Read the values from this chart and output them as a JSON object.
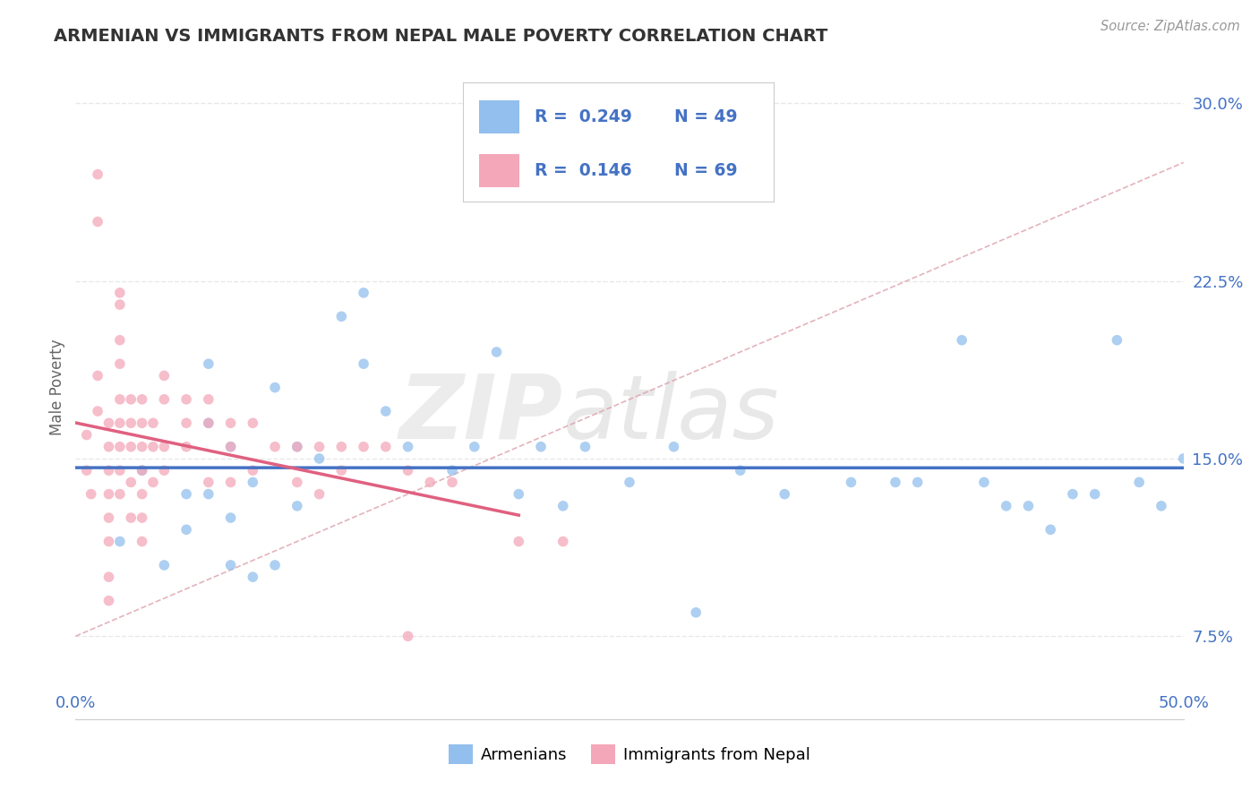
{
  "title": "ARMENIAN VS IMMIGRANTS FROM NEPAL MALE POVERTY CORRELATION CHART",
  "source": "Source: ZipAtlas.com",
  "ylabel": "Male Poverty",
  "xlim": [
    0.0,
    0.5
  ],
  "ylim": [
    0.04,
    0.32
  ],
  "legend_armenians": "Armenians",
  "legend_nepal": "Immigrants from Nepal",
  "R_armenians": "0.249",
  "N_armenians": "49",
  "R_nepal": "0.146",
  "N_nepal": "69",
  "color_armenians": "#92BFED",
  "color_nepal": "#F4A7B9",
  "color_trend_armenians": "#4472C4",
  "color_trend_nepal": "#E06080",
  "armenians_x": [
    0.02,
    0.03,
    0.04,
    0.05,
    0.05,
    0.06,
    0.06,
    0.06,
    0.07,
    0.07,
    0.07,
    0.08,
    0.08,
    0.09,
    0.09,
    0.1,
    0.1,
    0.11,
    0.12,
    0.13,
    0.13,
    0.14,
    0.15,
    0.17,
    0.18,
    0.19,
    0.2,
    0.21,
    0.22,
    0.23,
    0.25,
    0.27,
    0.28,
    0.3,
    0.32,
    0.35,
    0.37,
    0.38,
    0.4,
    0.41,
    0.42,
    0.43,
    0.44,
    0.45,
    0.46,
    0.47,
    0.48,
    0.49,
    0.5
  ],
  "armenians_y": [
    0.115,
    0.145,
    0.105,
    0.135,
    0.12,
    0.135,
    0.165,
    0.19,
    0.105,
    0.125,
    0.155,
    0.1,
    0.14,
    0.105,
    0.18,
    0.13,
    0.155,
    0.15,
    0.21,
    0.19,
    0.22,
    0.17,
    0.155,
    0.145,
    0.155,
    0.195,
    0.135,
    0.155,
    0.13,
    0.155,
    0.14,
    0.155,
    0.085,
    0.145,
    0.135,
    0.14,
    0.14,
    0.14,
    0.2,
    0.14,
    0.13,
    0.13,
    0.12,
    0.135,
    0.135,
    0.2,
    0.14,
    0.13,
    0.15
  ],
  "nepal_x": [
    0.005,
    0.005,
    0.007,
    0.01,
    0.01,
    0.01,
    0.01,
    0.015,
    0.015,
    0.015,
    0.015,
    0.015,
    0.015,
    0.015,
    0.015,
    0.02,
    0.02,
    0.02,
    0.02,
    0.02,
    0.02,
    0.02,
    0.02,
    0.02,
    0.025,
    0.025,
    0.025,
    0.025,
    0.025,
    0.03,
    0.03,
    0.03,
    0.03,
    0.03,
    0.03,
    0.03,
    0.035,
    0.035,
    0.035,
    0.04,
    0.04,
    0.04,
    0.04,
    0.05,
    0.05,
    0.05,
    0.06,
    0.06,
    0.06,
    0.07,
    0.07,
    0.07,
    0.08,
    0.08,
    0.09,
    0.1,
    0.1,
    0.11,
    0.11,
    0.12,
    0.12,
    0.13,
    0.14,
    0.15,
    0.15,
    0.16,
    0.17,
    0.2,
    0.22
  ],
  "nepal_y": [
    0.16,
    0.145,
    0.135,
    0.27,
    0.25,
    0.185,
    0.17,
    0.165,
    0.155,
    0.145,
    0.135,
    0.125,
    0.115,
    0.1,
    0.09,
    0.22,
    0.215,
    0.2,
    0.19,
    0.175,
    0.165,
    0.155,
    0.145,
    0.135,
    0.175,
    0.165,
    0.155,
    0.14,
    0.125,
    0.175,
    0.165,
    0.155,
    0.145,
    0.135,
    0.125,
    0.115,
    0.165,
    0.155,
    0.14,
    0.185,
    0.175,
    0.155,
    0.145,
    0.175,
    0.165,
    0.155,
    0.175,
    0.165,
    0.14,
    0.165,
    0.155,
    0.14,
    0.165,
    0.145,
    0.155,
    0.155,
    0.14,
    0.155,
    0.135,
    0.155,
    0.145,
    0.155,
    0.155,
    0.145,
    0.075,
    0.14,
    0.14,
    0.115,
    0.115
  ],
  "watermark_zip": "ZIP",
  "watermark_atlas": "atlas",
  "grid_color": "#E8E8E8",
  "diagonal_color": "#CCCCCC"
}
